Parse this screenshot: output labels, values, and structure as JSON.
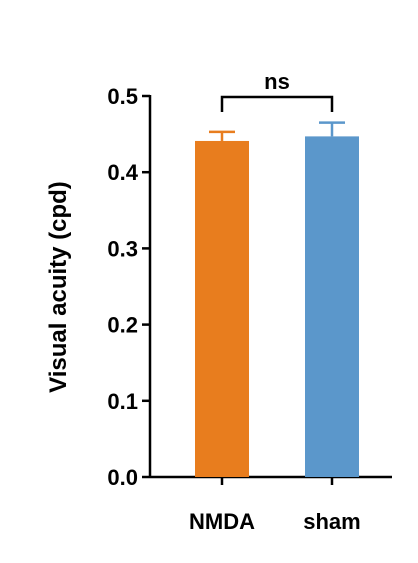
{
  "chart_data": {
    "type": "bar",
    "categories": [
      "NMDA",
      "sham"
    ],
    "values": [
      0.441,
      0.447
    ],
    "errors": [
      0.012,
      0.018
    ],
    "colors": [
      "#E87D1E",
      "#5B97CB"
    ],
    "ylabel": "Visual acuity (cpd)",
    "ylim": [
      0,
      0.5
    ],
    "yticks": [
      "0.0",
      "0.1",
      "0.2",
      "0.3",
      "0.4",
      "0.5"
    ],
    "yticks_values": [
      0,
      0.1,
      0.2,
      0.3,
      0.4,
      0.5
    ],
    "grid": false,
    "significance": {
      "label": "ns",
      "between": [
        "NMDA",
        "sham"
      ]
    }
  }
}
